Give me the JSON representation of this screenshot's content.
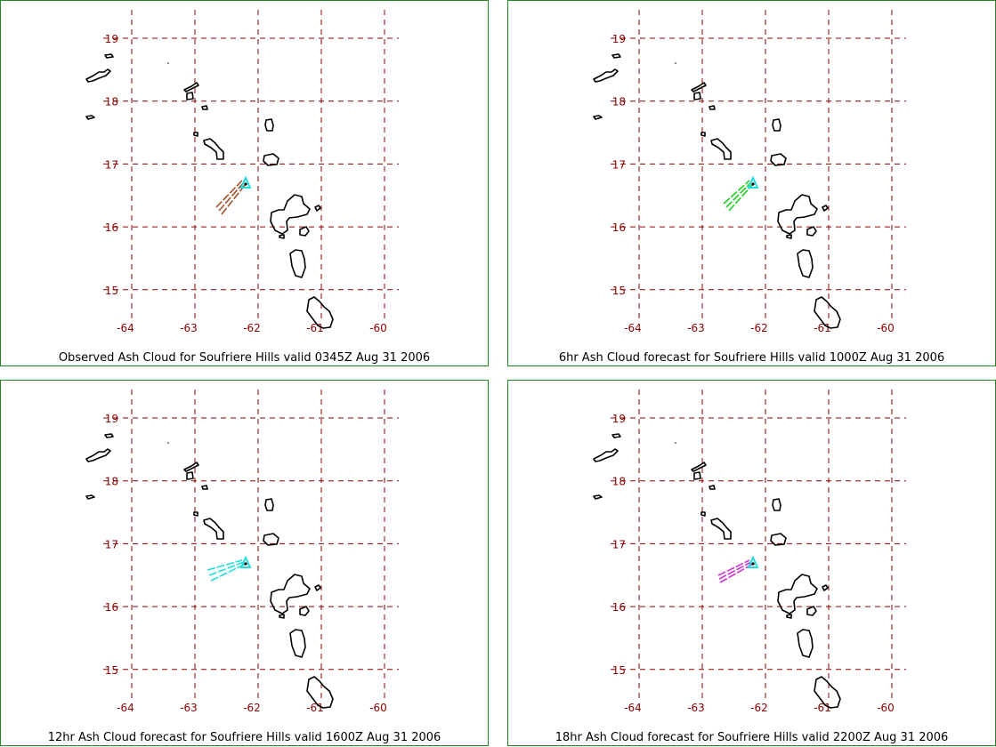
{
  "panels": [
    {
      "caption": "Observed Ash Cloud for Soufriere  Hills valid 0345Z Aug 31 2006",
      "cloud_color": "#a0522d"
    },
    {
      "caption": "6hr Ash Cloud forecast for Soufriere  Hills valid 1000Z Aug 31 2006",
      "cloud_color": "#22cc22"
    },
    {
      "caption": "12hr Ash Cloud forecast for Soufriere  Hills valid 1600Z Aug 31 2006",
      "cloud_color": "#22dddd"
    },
    {
      "caption": "18hr Ash Cloud forecast for Soufriere  Hills valid 2200Z Aug 31 2006",
      "cloud_color": "#cc33cc"
    }
  ],
  "lat_labels": [
    "19",
    "18",
    "17",
    "16",
    "15"
  ],
  "lon_labels": [
    "-64",
    "-63",
    "-62",
    "-61",
    "-60"
  ],
  "colors": {
    "grid": "#8b0000",
    "tick_text": "#8b0000",
    "coastline": "#000000",
    "volcano_marker": "#22dddd",
    "panel_border": "#1f8a1f"
  }
}
